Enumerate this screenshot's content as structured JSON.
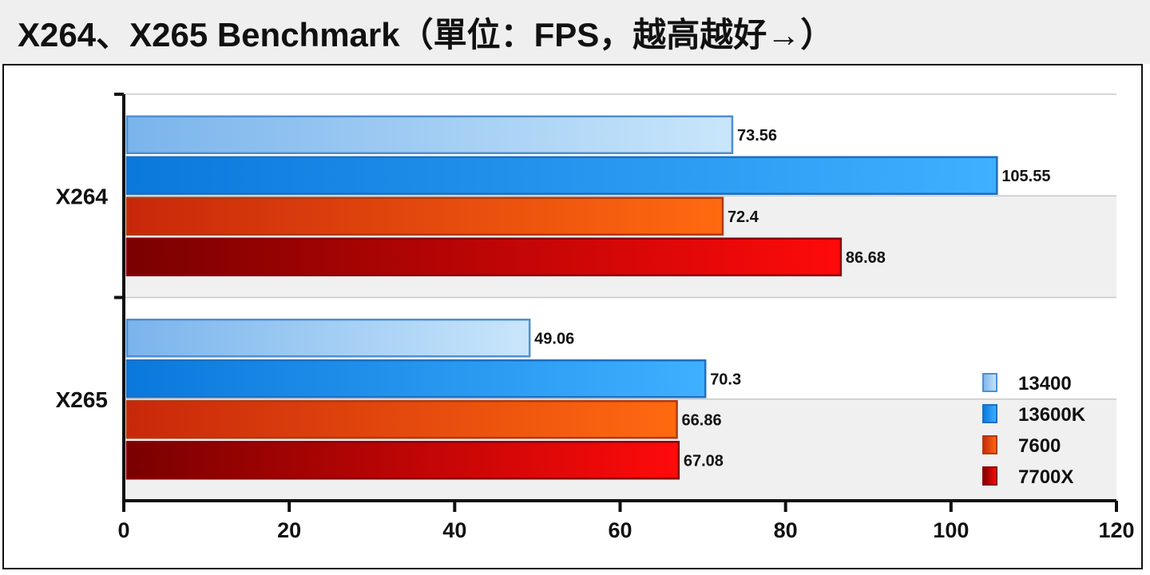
{
  "chart_data": {
    "type": "bar",
    "orientation": "horizontal",
    "title": "X264、X265 Benchmark（單位：FPS，越高越好→）",
    "categories": [
      "X264",
      "X265"
    ],
    "series": [
      {
        "name": "13400",
        "values": [
          73.56,
          49.06
        ],
        "color": "#9fd0f5"
      },
      {
        "name": "13600K",
        "values": [
          105.55,
          70.3
        ],
        "color": "#1f8fe8"
      },
      {
        "name": "7600",
        "values": [
          72.4,
          66.86
        ],
        "color": "#e85a10"
      },
      {
        "name": "7700X",
        "values": [
          86.68,
          67.08
        ],
        "color": "#c0000a"
      }
    ],
    "data_labels": [
      [
        "73.56",
        "49.06"
      ],
      [
        "105.55",
        "70.3"
      ],
      [
        "72.4",
        "66.86"
      ],
      [
        "86.68",
        "67.08"
      ]
    ],
    "xlim": [
      0,
      120
    ],
    "xticks": [
      0,
      20,
      40,
      60,
      80,
      100,
      120
    ],
    "xlabel": "",
    "ylabel": "",
    "grid": true,
    "legend_position": "bottom-right"
  }
}
